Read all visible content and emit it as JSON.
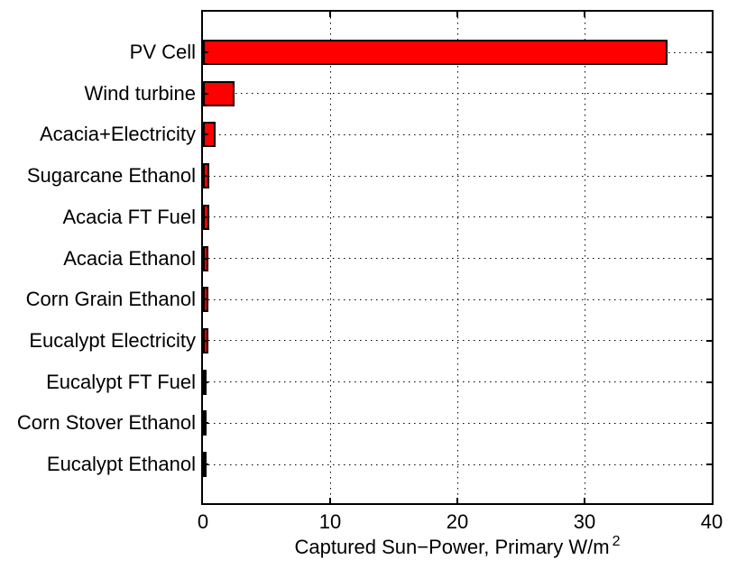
{
  "chart_data": {
    "type": "bar",
    "orientation": "horizontal",
    "title": "",
    "xlabel": "Captured Sun−Power, Primary W/m",
    "xlabel_superscript": "2",
    "ylabel": "",
    "categories": [
      "PV Cell",
      "Wind turbine",
      "Acacia+Electricity",
      "Sugarcane Ethanol",
      "Acacia FT Fuel",
      "Acacia Ethanol",
      "Corn Grain Ethanol",
      "Eucalypt Electricity",
      "Eucalypt FT Fuel",
      "Corn Stover Ethanol",
      "Eucalypt Ethanol"
    ],
    "values": [
      36.5,
      2.5,
      1.0,
      0.5,
      0.5,
      0.45,
      0.4,
      0.4,
      0.3,
      0.3,
      0.1
    ],
    "xlim": [
      0,
      40
    ],
    "xticks": [
      0,
      10,
      20,
      30,
      40
    ],
    "xtick_labels": [
      "0",
      "10",
      "20",
      "30",
      "40"
    ],
    "grid": "dotted",
    "legend": "none",
    "bar_color": "#ff0000",
    "bar_edge_color": "#000000",
    "axis_color": "#000000",
    "background_color": "#ffffff"
  }
}
